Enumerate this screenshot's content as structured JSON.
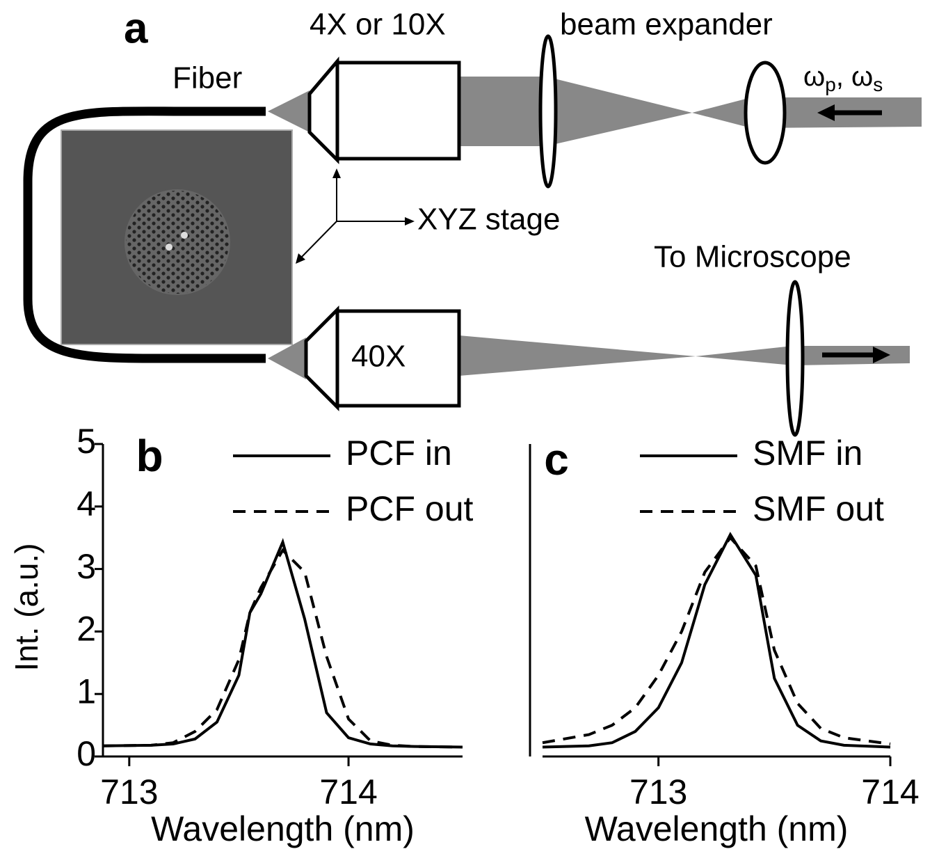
{
  "diagram": {
    "panel_label": "a",
    "objective_top": "4X or 10X",
    "expander": "beam expander",
    "fiber": "Fiber",
    "beams": [
      "ω",
      "p",
      ", ω",
      "s"
    ],
    "stage": "XYZ stage",
    "microscope": "To Microscope",
    "objective_bottom": "40X"
  },
  "chart_data": [
    {
      "type": "line",
      "panel_label": "b",
      "x_label": "Wavelength (nm)",
      "y_label": "Int. (a.u.)",
      "xlim": [
        712.88,
        714.52
      ],
      "xticks": [
        713,
        714
      ],
      "ylim": [
        0,
        5
      ],
      "yticks": [
        0,
        1,
        2,
        3,
        4,
        5
      ],
      "x": [
        712.88,
        713.1,
        713.2,
        713.3,
        713.4,
        713.5,
        713.55,
        713.6,
        713.7,
        713.8,
        713.9,
        714.0,
        714.1,
        714.2,
        714.3,
        714.52
      ],
      "series": [
        {
          "name": "PCF in",
          "color": "#000000",
          "dash": "solid",
          "values": [
            0.17,
            0.18,
            0.2,
            0.28,
            0.55,
            1.3,
            2.3,
            2.6,
            3.43,
            2.2,
            0.7,
            0.3,
            0.2,
            0.17,
            0.16,
            0.15
          ]
        },
        {
          "name": "PCF out",
          "color": "#000000",
          "dash": "dashed",
          "values": [
            0.17,
            0.18,
            0.22,
            0.4,
            0.75,
            1.55,
            2.3,
            2.7,
            3.3,
            2.95,
            1.6,
            0.6,
            0.25,
            0.18,
            0.16,
            0.15
          ]
        }
      ]
    },
    {
      "type": "line",
      "panel_label": "c",
      "x_label": "Wavelength (nm)",
      "xlim": [
        712.5,
        714
      ],
      "xticks": [
        713,
        714
      ],
      "ylim": [
        0,
        5
      ],
      "x": [
        712.5,
        712.7,
        712.8,
        712.9,
        713.0,
        713.1,
        713.2,
        713.31,
        713.42,
        713.5,
        713.6,
        713.7,
        713.8,
        714.0
      ],
      "series": [
        {
          "name": "SMF in",
          "color": "#000000",
          "dash": "solid",
          "values": [
            0.15,
            0.17,
            0.22,
            0.4,
            0.78,
            1.5,
            2.75,
            3.55,
            2.9,
            1.25,
            0.5,
            0.25,
            0.18,
            0.15
          ]
        },
        {
          "name": "SMF out",
          "color": "#000000",
          "dash": "dashed",
          "values": [
            0.22,
            0.35,
            0.5,
            0.78,
            1.3,
            2.0,
            2.95,
            3.5,
            3.05,
            1.7,
            0.85,
            0.45,
            0.3,
            0.2
          ]
        }
      ]
    }
  ]
}
